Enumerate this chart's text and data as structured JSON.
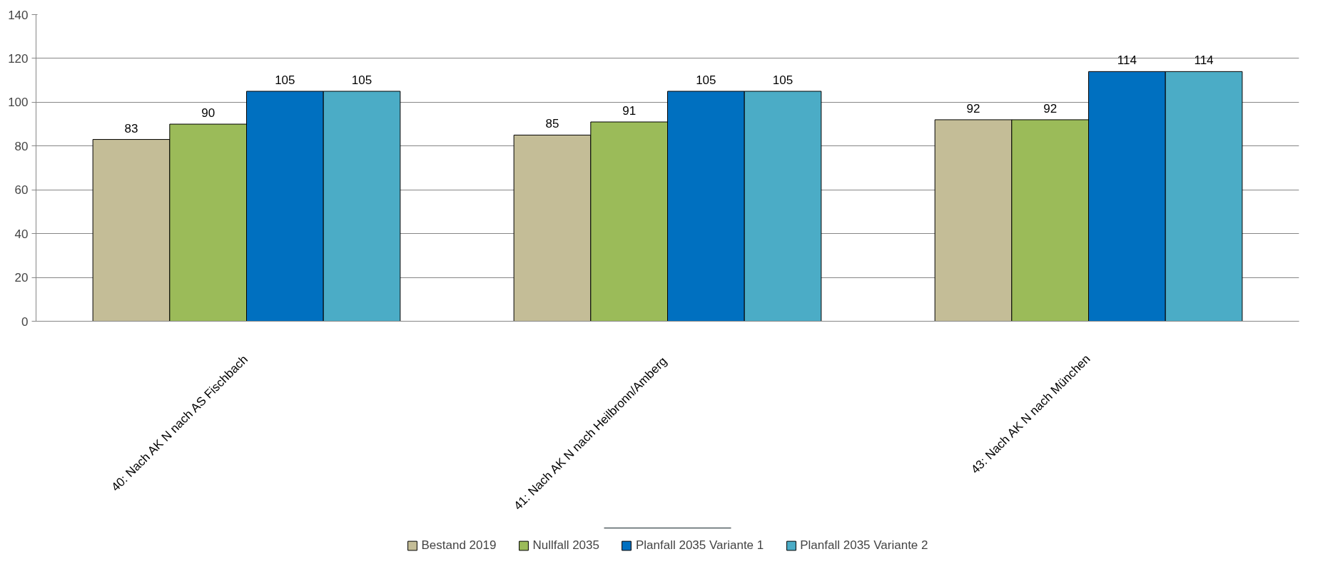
{
  "chart_data": {
    "type": "bar",
    "categories": [
      "40: Nach AK N nach AS Fischbach",
      "41: Nach AK N nach  Heilbronn/Amberg",
      "43: Nach AK N nach München"
    ],
    "series": [
      {
        "name": "Bestand 2019",
        "color": "#c4bd97",
        "values": [
          83,
          85,
          92
        ]
      },
      {
        "name": "Nullfall 2035",
        "color": "#9bbb59",
        "values": [
          90,
          91,
          92
        ]
      },
      {
        "name": "Planfall 2035 Variante 1",
        "color": "#0070c0",
        "values": [
          105,
          105,
          114
        ]
      },
      {
        "name": "Planfall 2035 Variante 2",
        "color": "#4bacc6",
        "values": [
          105,
          105,
          114
        ]
      }
    ],
    "ylim": [
      0,
      140
    ],
    "yticks": [
      0,
      20,
      40,
      60,
      80,
      100,
      120,
      140
    ],
    "grid": "y",
    "legend": "bottom",
    "data_labels": true
  }
}
